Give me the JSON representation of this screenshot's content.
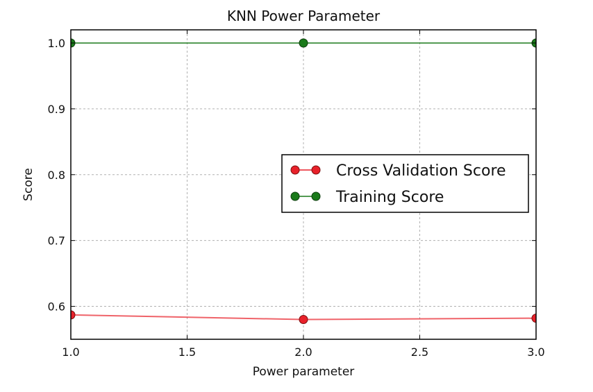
{
  "chart_data": {
    "type": "line",
    "title": "KNN Power Parameter",
    "xlabel": "Power parameter",
    "ylabel": "Score",
    "xlim": [
      1.0,
      3.0
    ],
    "ylim": [
      0.55,
      1.02
    ],
    "xticks": [
      "1.0",
      "1.5",
      "2.0",
      "2.5",
      "3.0"
    ],
    "yticks": [
      "0.6",
      "0.7",
      "0.8",
      "0.9",
      "1.0"
    ],
    "xtick_values": [
      1.0,
      1.5,
      2.0,
      2.5,
      3.0
    ],
    "ytick_values": [
      0.6,
      0.7,
      0.8,
      0.9,
      1.0
    ],
    "grid": true,
    "legend_position": "center-right",
    "series": [
      {
        "name": "Cross Validation Score",
        "color": "#e8212a",
        "x": [
          1.0,
          2.0,
          3.0
        ],
        "values": [
          0.587,
          0.58,
          0.582
        ]
      },
      {
        "name": "Training Score",
        "color": "#1a7a1a",
        "x": [
          1.0,
          2.0,
          3.0
        ],
        "values": [
          1.0,
          1.0,
          1.0
        ]
      }
    ]
  }
}
